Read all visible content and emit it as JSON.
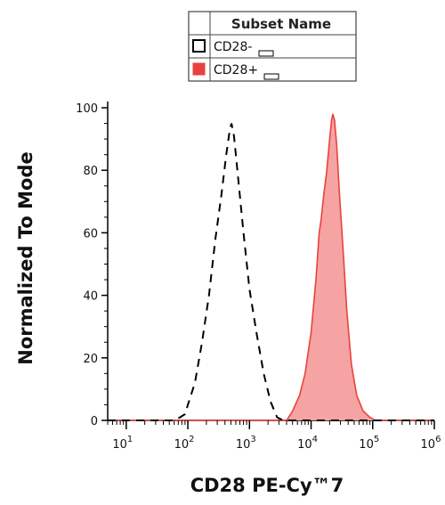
{
  "chart_data": {
    "type": "histogram",
    "xlabel": "CD28 PE-Cy™7",
    "ylabel": "Normalized To Mode",
    "x_scale": "log",
    "xlim": [
      5,
      1000000
    ],
    "ylim": [
      0,
      100
    ],
    "x_ticks": [
      {
        "value": 10,
        "base": "10",
        "exp": "1"
      },
      {
        "value": 100,
        "base": "10",
        "exp": "2"
      },
      {
        "value": 1000,
        "base": "10",
        "exp": "3"
      },
      {
        "value": 10000,
        "base": "10",
        "exp": "4"
      },
      {
        "value": 100000,
        "base": "10",
        "exp": "5"
      },
      {
        "value": 1000000,
        "base": "10",
        "exp": "6"
      }
    ],
    "y_ticks": [
      "0",
      "20",
      "40",
      "60",
      "80",
      "100"
    ],
    "legend": {
      "title": "Subset Name",
      "placement": "top-center",
      "entries": [
        "CD28-",
        "CD28+"
      ]
    },
    "series": [
      {
        "name": "CD28-",
        "style": "dashed",
        "color": "#000000",
        "fill": "none",
        "points": [
          [
            5,
            0
          ],
          [
            60,
            0
          ],
          [
            75,
            1
          ],
          [
            90,
            2
          ],
          [
            100,
            5
          ],
          [
            130,
            12
          ],
          [
            170,
            25
          ],
          [
            220,
            40
          ],
          [
            280,
            58
          ],
          [
            350,
            72
          ],
          [
            420,
            85
          ],
          [
            480,
            93
          ],
          [
            510,
            95
          ],
          [
            560,
            91
          ],
          [
            650,
            78
          ],
          [
            800,
            60
          ],
          [
            1000,
            42
          ],
          [
            1300,
            28
          ],
          [
            1700,
            15
          ],
          [
            2200,
            6
          ],
          [
            2800,
            1
          ],
          [
            3500,
            0
          ],
          [
            1000000,
            0
          ]
        ]
      },
      {
        "name": "CD28+",
        "style": "solid",
        "color": "#e8423f",
        "fill": "#f6a3a3",
        "points": [
          [
            5,
            0
          ],
          [
            4000,
            0
          ],
          [
            5000,
            3
          ],
          [
            6500,
            8
          ],
          [
            8000,
            15
          ],
          [
            10000,
            28
          ],
          [
            12000,
            45
          ],
          [
            13500,
            60
          ],
          [
            14500,
            64
          ],
          [
            16000,
            72
          ],
          [
            18000,
            80
          ],
          [
            20000,
            90
          ],
          [
            21500,
            96
          ],
          [
            22500,
            98
          ],
          [
            24000,
            96
          ],
          [
            26000,
            88
          ],
          [
            29000,
            72
          ],
          [
            33000,
            55
          ],
          [
            38000,
            35
          ],
          [
            45000,
            18
          ],
          [
            55000,
            8
          ],
          [
            70000,
            3
          ],
          [
            90000,
            1
          ],
          [
            110000,
            0
          ],
          [
            1000000,
            0
          ]
        ]
      }
    ]
  }
}
